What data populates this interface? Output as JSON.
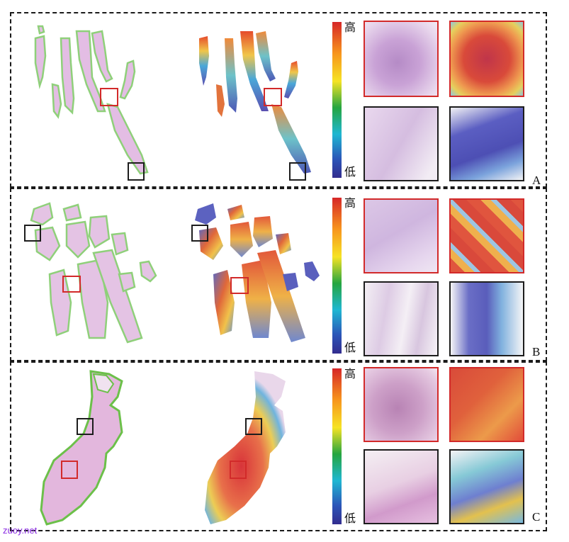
{
  "panels": [
    {
      "label": "A",
      "colorbar_high": "高",
      "colorbar_low": "低"
    },
    {
      "label": "B",
      "colorbar_high": "高",
      "colorbar_low": "低"
    },
    {
      "label": "C",
      "colorbar_high": "高",
      "colorbar_low": "低"
    }
  ],
  "watermark": "zuoy.net",
  "colors": {
    "highlight_box": "#d22a2a",
    "reference_box": "#1d1d1d",
    "tissue_stain": "#d9a9d8",
    "tissue_outline": "#7cc86a",
    "colormap": [
      "#d62728",
      "#f7941d",
      "#f6e324",
      "#25a540",
      "#1fb7d2",
      "#2b55b8",
      "#332d8f"
    ]
  }
}
